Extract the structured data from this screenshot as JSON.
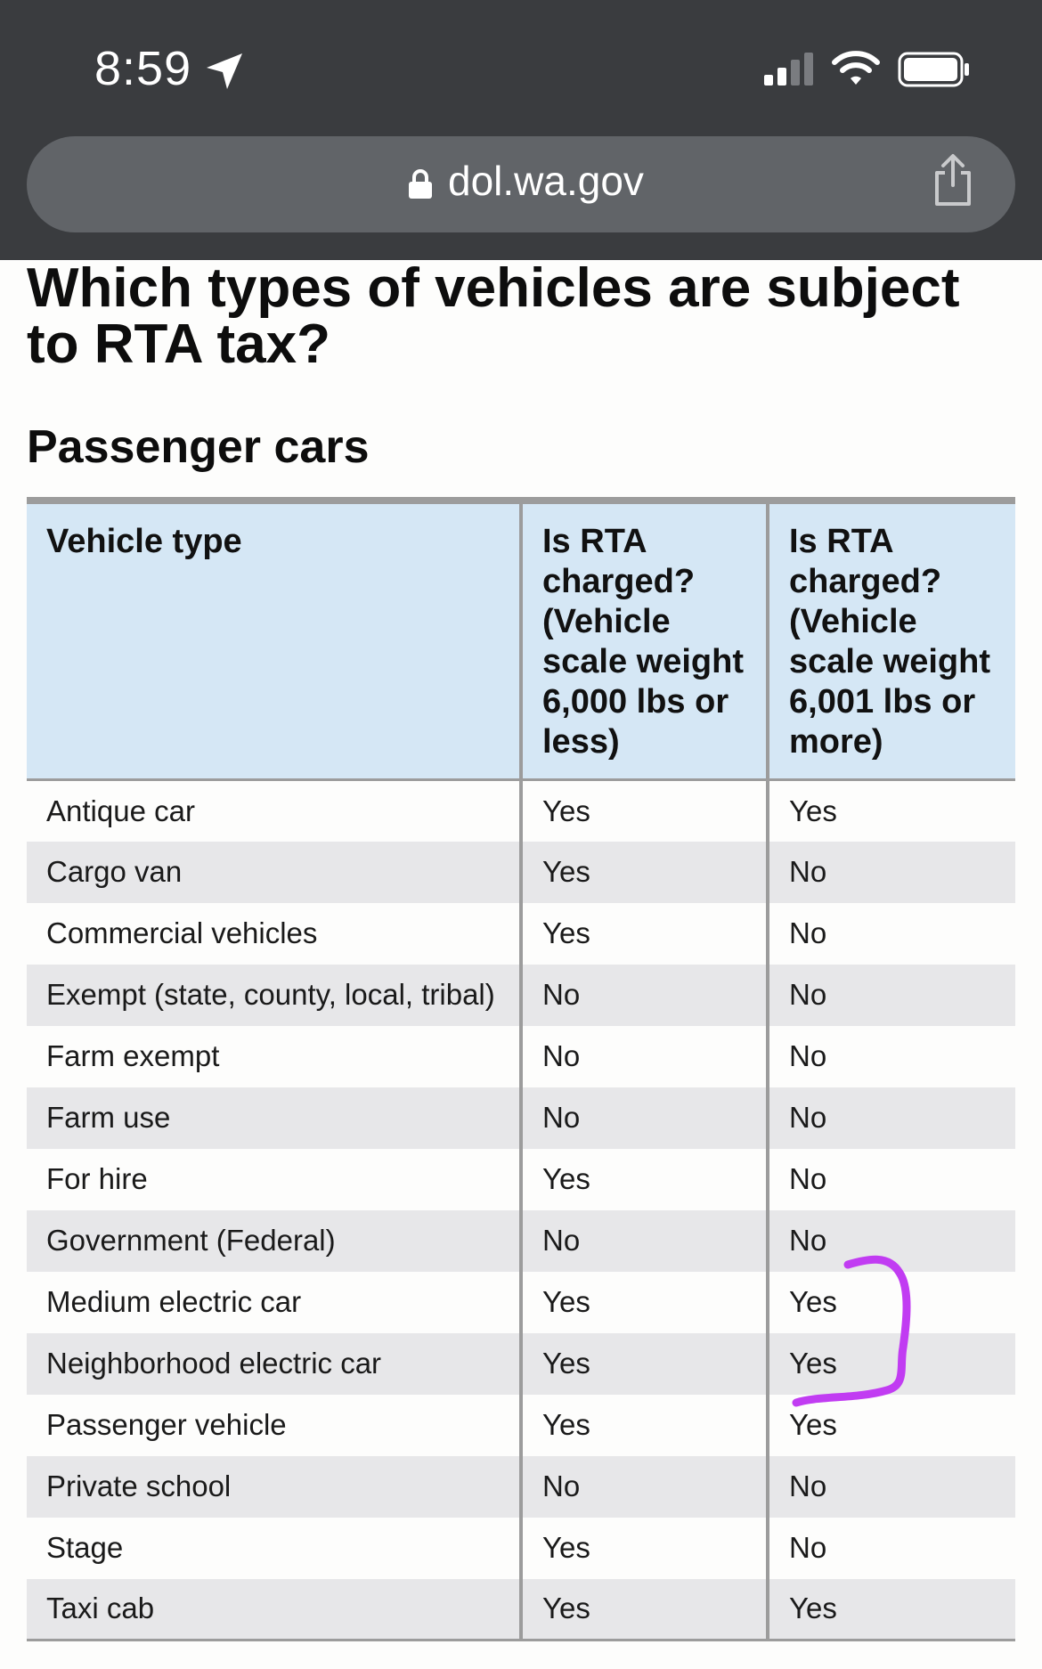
{
  "status_bar": {
    "time": "8:59",
    "icons": [
      "location-arrow-icon",
      "cellular-signal-icon",
      "wifi-icon",
      "battery-icon"
    ]
  },
  "browser": {
    "url": "dol.wa.gov",
    "icons": [
      "lock-icon",
      "share-icon"
    ]
  },
  "page": {
    "title": "Which types of vehicles are subject to RTA tax?",
    "section_title": "Passenger cars"
  },
  "table": {
    "headers": [
      "Vehicle type",
      "Is RTA charged? (Vehicle scale weight 6,000 lbs or less)",
      "Is RTA charged? (Vehicle scale weight 6,001 lbs or more)"
    ],
    "rows": [
      [
        "Antique car",
        "Yes",
        "Yes"
      ],
      [
        "Cargo van",
        "Yes",
        "No"
      ],
      [
        "Commercial vehicles",
        "Yes",
        "No"
      ],
      [
        "Exempt (state, county, local, tribal)",
        "No",
        "No"
      ],
      [
        "Farm exempt",
        "No",
        "No"
      ],
      [
        "Farm use",
        "No",
        "No"
      ],
      [
        "For hire",
        "Yes",
        "No"
      ],
      [
        "Government (Federal)",
        "No",
        "No"
      ],
      [
        "Medium electric car",
        "Yes",
        "Yes"
      ],
      [
        "Neighborhood electric car",
        "Yes",
        "Yes"
      ],
      [
        "Passenger vehicle",
        "Yes",
        "Yes"
      ],
      [
        "Private school",
        "No",
        "No"
      ],
      [
        "Stage",
        "Yes",
        "No"
      ],
      [
        "Taxi cab",
        "Yes",
        "Yes"
      ]
    ]
  },
  "colors": {
    "top_bar": "#3a3c3f",
    "address_bar": "#616468",
    "header_bg": "#d5e7f5",
    "stripe_bg": "#e7e7e9",
    "annotation": "#c13cf2"
  }
}
